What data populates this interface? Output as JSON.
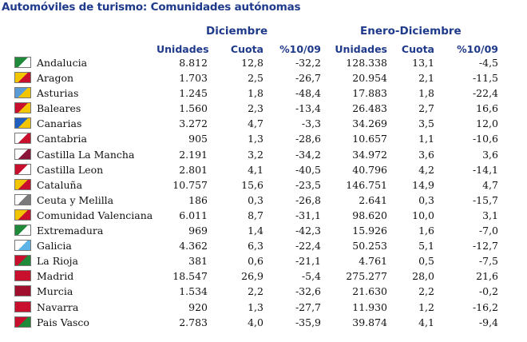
{
  "title": "Automóviles de turismo: Comunidades autónomas",
  "groups": {
    "diciembre": "Diciembre",
    "enero_diciembre": "Enero-Diciembre"
  },
  "columns": {
    "unidades": "Unidades",
    "cuota": "Cuota",
    "variacion": "%10/09",
    "unidades2": "Unidades",
    "cuota2": "Cuota",
    "variacion2": "%10/09"
  },
  "rows": [
    {
      "name": "Andalucia",
      "dic_unidades": "8.812",
      "dic_cuota": "12,8",
      "dic_var": "-32,2",
      "ene_unidades": "128.338",
      "ene_cuota": "13,1",
      "ene_var": "-4,5",
      "flag": "andalucia-flag",
      "c1": "#1f8a3a",
      "c2": "#ffffff"
    },
    {
      "name": "Aragon",
      "dic_unidades": "1.703",
      "dic_cuota": "2,5",
      "dic_var": "-26,7",
      "ene_unidades": "20.954",
      "ene_cuota": "2,1",
      "ene_var": "-11,5",
      "flag": "aragon-flag",
      "c1": "#f2c500",
      "c2": "#c8102e"
    },
    {
      "name": "Asturias",
      "dic_unidades": "1.245",
      "dic_cuota": "1,8",
      "dic_var": "-48,4",
      "ene_unidades": "17.883",
      "ene_cuota": "1,8",
      "ene_var": "-22,4",
      "flag": "asturias-flag",
      "c1": "#5b9bd5",
      "c2": "#f2c500"
    },
    {
      "name": "Baleares",
      "dic_unidades": "1.560",
      "dic_cuota": "2,3",
      "dic_var": "-13,4",
      "ene_unidades": "26.483",
      "ene_cuota": "2,7",
      "ene_var": "16,6",
      "flag": "baleares-flag",
      "c1": "#c8102e",
      "c2": "#f2c500"
    },
    {
      "name": "Canarias",
      "dic_unidades": "3.272",
      "dic_cuota": "4,7",
      "dic_var": "-3,3",
      "ene_unidades": "34.269",
      "ene_cuota": "3,5",
      "ene_var": "12,0",
      "flag": "canarias-flag",
      "c1": "#1f5fbf",
      "c2": "#f2c500"
    },
    {
      "name": "Cantabria",
      "dic_unidades": "905",
      "dic_cuota": "1,3",
      "dic_var": "-28,6",
      "ene_unidades": "10.657",
      "ene_cuota": "1,1",
      "ene_var": "-10,6",
      "flag": "cantabria-flag",
      "c1": "#ffffff",
      "c2": "#c8102e"
    },
    {
      "name": "Castilla La Mancha",
      "dic_unidades": "2.191",
      "dic_cuota": "3,2",
      "dic_var": "-34,2",
      "ene_unidades": "34.972",
      "ene_cuota": "3,6",
      "ene_var": "3,6",
      "flag": "castilla-la-mancha-flag",
      "c1": "#ffffff",
      "c2": "#8a1538"
    },
    {
      "name": "Castilla Leon",
      "dic_unidades": "2.801",
      "dic_cuota": "4,1",
      "dic_var": "-40,5",
      "ene_unidades": "40.796",
      "ene_cuota": "4,2",
      "ene_var": "-14,1",
      "flag": "castilla-leon-flag",
      "c1": "#c8102e",
      "c2": "#ffffff"
    },
    {
      "name": "Cataluña",
      "dic_unidades": "10.757",
      "dic_cuota": "15,6",
      "dic_var": "-23,5",
      "ene_unidades": "146.751",
      "ene_cuota": "14,9",
      "ene_var": "4,7",
      "flag": "cataluna-flag",
      "c1": "#f2c500",
      "c2": "#c8102e"
    },
    {
      "name": "Ceuta y Melilla",
      "dic_unidades": "186",
      "dic_cuota": "0,3",
      "dic_var": "-26,8",
      "ene_unidades": "2.641",
      "ene_cuota": "0,3",
      "ene_var": "-15,7",
      "flag": "ceuta-melilla-flag",
      "c1": "#ffffff",
      "c2": "#7a7a7a"
    },
    {
      "name": "Comunidad Valenciana",
      "dic_unidades": "6.011",
      "dic_cuota": "8,7",
      "dic_var": "-31,1",
      "ene_unidades": "98.620",
      "ene_cuota": "10,0",
      "ene_var": "3,1",
      "flag": "valencia-flag",
      "c1": "#f2c500",
      "c2": "#c8102e"
    },
    {
      "name": "Extremadura",
      "dic_unidades": "969",
      "dic_cuota": "1,4",
      "dic_var": "-42,3",
      "ene_unidades": "15.926",
      "ene_cuota": "1,6",
      "ene_var": "-7,0",
      "flag": "extremadura-flag",
      "c1": "#1f8a3a",
      "c2": "#ffffff"
    },
    {
      "name": "Galicia",
      "dic_unidades": "4.362",
      "dic_cuota": "6,3",
      "dic_var": "-22,4",
      "ene_unidades": "50.253",
      "ene_cuota": "5,1",
      "ene_var": "-12,7",
      "flag": "galicia-flag",
      "c1": "#ffffff",
      "c2": "#5bb4e5"
    },
    {
      "name": "La Rioja",
      "dic_unidades": "381",
      "dic_cuota": "0,6",
      "dic_var": "-21,1",
      "ene_unidades": "4.761",
      "ene_cuota": "0,5",
      "ene_var": "-7,5",
      "flag": "la-rioja-flag",
      "c1": "#c8102e",
      "c2": "#1f8a3a"
    },
    {
      "name": "Madrid",
      "dic_unidades": "18.547",
      "dic_cuota": "26,9",
      "dic_var": "-5,4",
      "ene_unidades": "275.277",
      "ene_cuota": "28,0",
      "ene_var": "21,6",
      "flag": "madrid-flag",
      "c1": "#c8102e",
      "c2": "#c8102e"
    },
    {
      "name": "Murcia",
      "dic_unidades": "1.534",
      "dic_cuota": "2,2",
      "dic_var": "-32,6",
      "ene_unidades": "21.630",
      "ene_cuota": "2,2",
      "ene_var": "-0,2",
      "flag": "murcia-flag",
      "c1": "#a0102e",
      "c2": "#a0102e"
    },
    {
      "name": "Navarra",
      "dic_unidades": "920",
      "dic_cuota": "1,3",
      "dic_var": "-27,7",
      "ene_unidades": "11.930",
      "ene_cuota": "1,2",
      "ene_var": "-16,2",
      "flag": "navarra-flag",
      "c1": "#c8102e",
      "c2": "#c8102e"
    },
    {
      "name": "Pais Vasco",
      "dic_unidades": "2.783",
      "dic_cuota": "4,0",
      "dic_var": "-35,9",
      "ene_unidades": "39.874",
      "ene_cuota": "4,1",
      "ene_var": "-9,4",
      "flag": "pais-vasco-flag",
      "c1": "#c8102e",
      "c2": "#1f8a3a"
    }
  ]
}
